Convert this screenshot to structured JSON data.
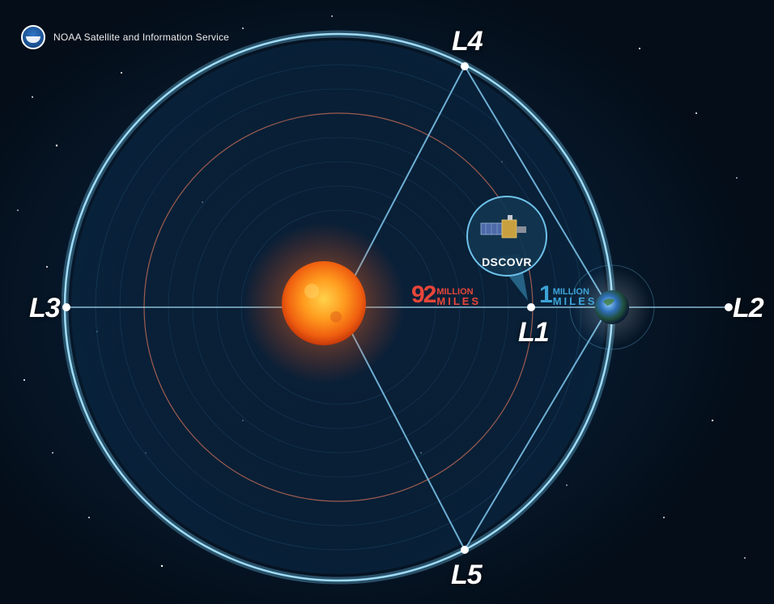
{
  "header": {
    "org_name": "NOAA Satellite and Information Service",
    "logo_icon": "noaa-logo-icon"
  },
  "points": {
    "l1": "L1",
    "l2": "L2",
    "l3": "L3",
    "l4": "L4",
    "l5": "L5"
  },
  "distances": {
    "sun_to_l1": {
      "number": "92",
      "unit_line1": "MILLION",
      "unit_line2": "MILES"
    },
    "l1_to_earth": {
      "number": "1",
      "unit_line1": "MILLION",
      "unit_line2": "MILES"
    }
  },
  "satellite": {
    "name": "DSCOVR",
    "icon": "satellite-icon"
  },
  "colors": {
    "orbit": "#6ec2ea",
    "axis_line": "#9fd8f2",
    "sun_line": "#e04a2c",
    "distance_red": "#e8463a",
    "distance_blue": "#3da3d8"
  }
}
